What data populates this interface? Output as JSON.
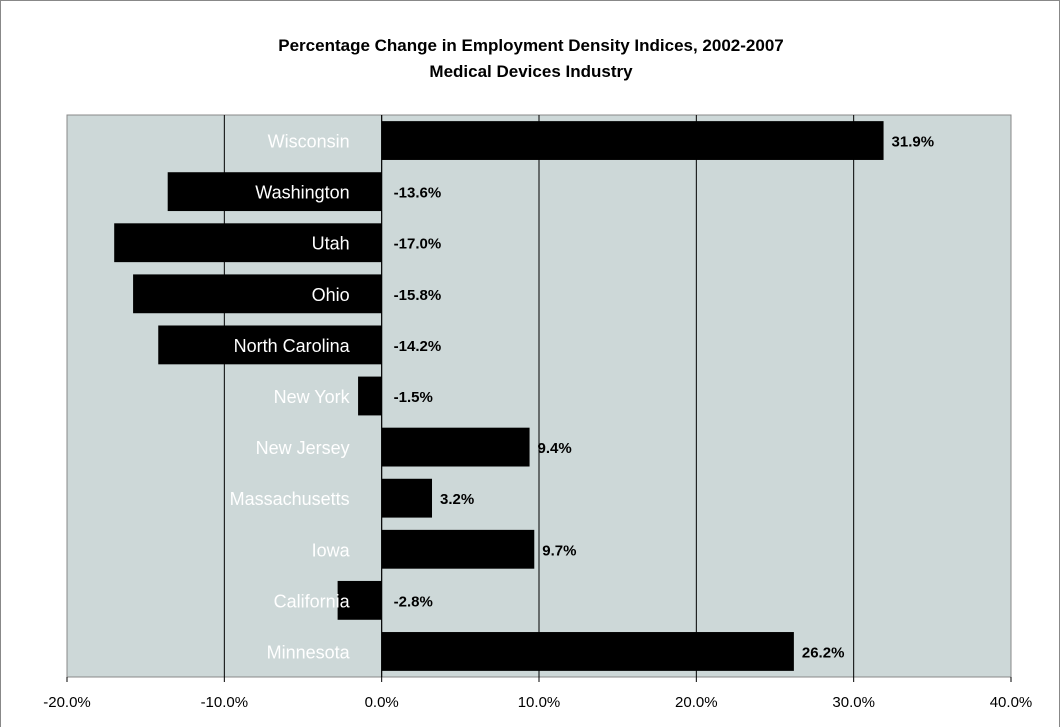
{
  "chart_data": {
    "type": "bar",
    "orientation": "horizontal",
    "title": "Percentage Change in Employment Density Indices, 2002-2007",
    "subtitle": "Medical Devices Industry",
    "categories": [
      "Wisconsin",
      "Washington",
      "Utah",
      "Ohio",
      "North Carolina",
      "New York",
      "New Jersey",
      "Massachusetts",
      "Iowa",
      "California",
      "Minnesota"
    ],
    "values": [
      31.9,
      -13.6,
      -17.0,
      -15.8,
      -14.2,
      -1.5,
      9.4,
      3.2,
      9.7,
      -2.8,
      26.2
    ],
    "data_labels": [
      "31.9%",
      "-13.6%",
      "-17.0%",
      "-15.8%",
      "-14.2%",
      "-1.5%",
      "9.4%",
      "3.2%",
      "9.7%",
      "-2.8%",
      "26.2%"
    ],
    "xlim": [
      -20,
      40
    ],
    "x_ticks": [
      -20,
      -10,
      0,
      10,
      20,
      30,
      40
    ],
    "x_tick_labels": [
      "-20.0%",
      "-10.0%",
      "0.0%",
      "10.0%",
      "20.0%",
      "30.0%",
      "40.0%"
    ],
    "xlabel": "",
    "ylabel": "",
    "grid": true,
    "legend": "none",
    "colors": {
      "bar": "#000000",
      "plot_background": "#cdd8d8",
      "gridline": "#000000",
      "label_on_bar": "#ffffff",
      "label_on_background": "#ffffff"
    }
  }
}
